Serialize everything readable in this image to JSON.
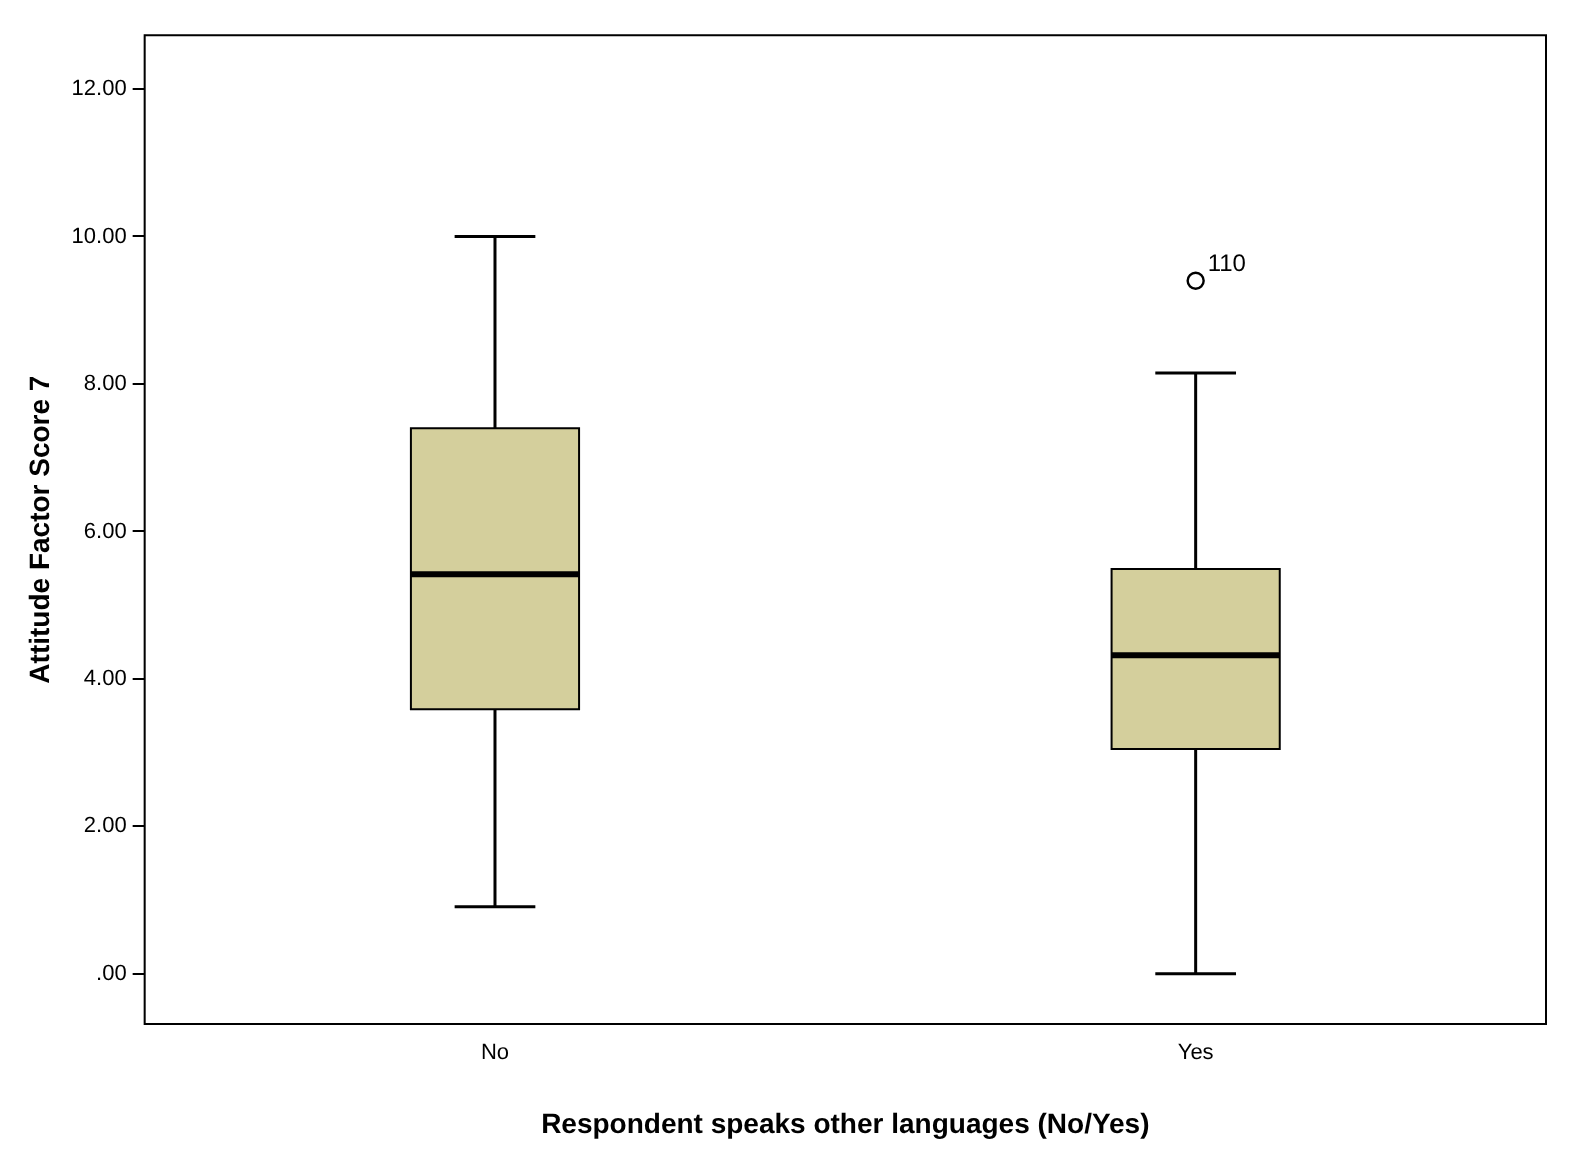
{
  "chart_data": {
    "type": "box",
    "xlabel": "Respondent speaks other languages (No/Yes)",
    "ylabel": "Attitude Factor Score 7",
    "categories": [
      "No",
      "Yes"
    ],
    "boxes": [
      {
        "low": 0.91,
        "q1": 3.59,
        "median": 5.42,
        "q3": 7.4,
        "high": 10.0
      },
      {
        "low": 0,
        "q1": 3.05,
        "median": 4.32,
        "q3": 5.49,
        "high": 8.15,
        "outliers": [
          9.4
        ]
      }
    ],
    "color": "#d4cf9c",
    "ylim": [
      -0.68,
      12.73
    ],
    "yticks": [
      {
        "value": 0,
        "label": ".00"
      },
      {
        "value": 2,
        "label": "2.00"
      },
      {
        "value": 4,
        "label": "4.00"
      },
      {
        "value": 6,
        "label": "6.00"
      },
      {
        "value": 8,
        "label": "8.00"
      },
      {
        "value": 10,
        "label": "10.00"
      },
      {
        "value": 12,
        "label": "12.00"
      }
    ],
    "annotations": [
      "110"
    ],
    "grid": false,
    "legend": false
  }
}
